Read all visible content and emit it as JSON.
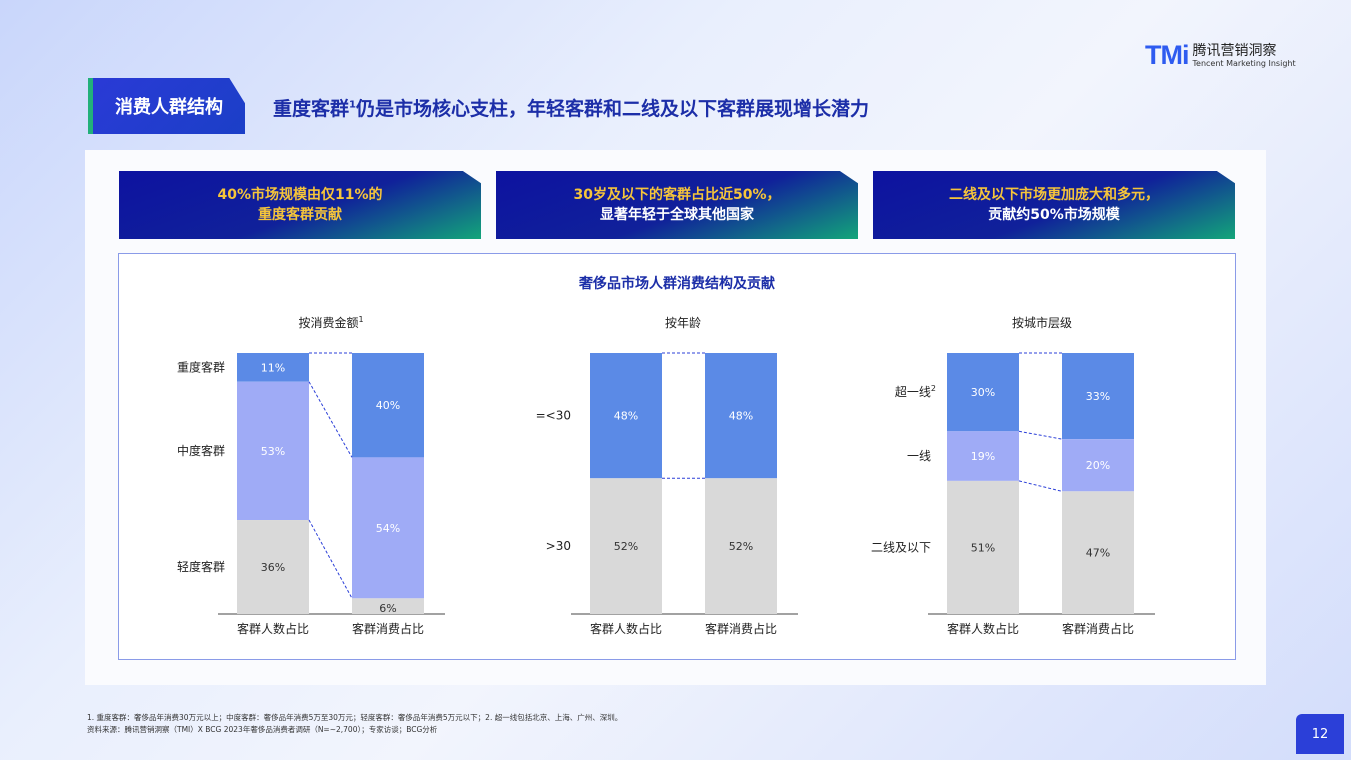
{
  "logo": {
    "mark": "TMi",
    "cn": "腾讯营销洞察",
    "en": "Tencent Marketing Insight"
  },
  "section_tag": "消费人群结构",
  "headline": {
    "pre": "重度客群",
    "sup": "1",
    "post": "仍是市场核心支柱，年轻客群和二线及以下客群展现增长潜力"
  },
  "highlights": [
    {
      "line1": "40%市场规模由仅11%的",
      "line2": "重度客群贡献"
    },
    {
      "line1": "30岁及以下的客群占比近50%，",
      "line2": "显著年轻于全球其他国家"
    },
    {
      "line1": "二线及以下市场更加庞大和多元，",
      "line2": "贡献约50%市场规模"
    }
  ],
  "chart_title": "奢侈品市场人群消费结构及贡献",
  "colors": {
    "top": "#5b8ae6",
    "mid": "#9fabf6",
    "bottom": "#d9d9d9",
    "accent": "#1c2ea8"
  },
  "chart_data": [
    {
      "type": "bar",
      "stacked": true,
      "title": "按消费金额",
      "title_sup": "1",
      "categories": [
        "客群人数占比",
        "客群消费占比"
      ],
      "ylim": [
        0,
        100
      ],
      "series": [
        {
          "name": "重度客群",
          "values": [
            11,
            40
          ]
        },
        {
          "name": "中度客群",
          "values": [
            53,
            54
          ]
        },
        {
          "name": "轻度客群",
          "values": [
            36,
            6
          ]
        }
      ]
    },
    {
      "type": "bar",
      "stacked": true,
      "title": "按年龄",
      "title_sup": "",
      "categories": [
        "客群人数占比",
        "客群消费占比"
      ],
      "ylim": [
        0,
        100
      ],
      "series": [
        {
          "name": "=<30",
          "values": [
            48,
            48
          ]
        },
        {
          "name": ">30",
          "values": [
            52,
            52
          ]
        }
      ]
    },
    {
      "type": "bar",
      "stacked": true,
      "title": "按城市层级",
      "title_sup": "",
      "categories": [
        "客群人数占比",
        "客群消费占比"
      ],
      "ylim": [
        0,
        100
      ],
      "series": [
        {
          "name": "超一线",
          "name_sup": "2",
          "values": [
            30,
            33
          ]
        },
        {
          "name": "一线",
          "values": [
            19,
            20
          ]
        },
        {
          "name": "二线及以下",
          "values": [
            51,
            47
          ]
        }
      ]
    }
  ],
  "footnote": {
    "line1": "1. 重度客群：奢侈品年消费30万元以上；中度客群：奢侈品年消费5万至30万元；轻度客群：奢侈品年消费5万元以下；2. 超一线包括北京、上海、广州、深圳。",
    "line2": "资料来源：腾讯营销洞察（TMI）X BCG 2023年奢侈品消费者调研（N=~2,700）；专家访谈；BCG分析"
  },
  "page_number": "12"
}
